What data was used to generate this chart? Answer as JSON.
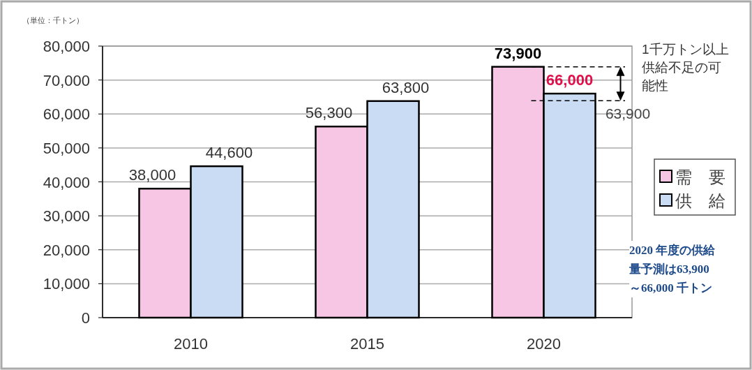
{
  "chart_data": {
    "type": "bar",
    "categories": [
      "2010",
      "2015",
      "2020"
    ],
    "series": [
      {
        "name": "需　要",
        "color": "#f6c6e4",
        "values": [
          38000,
          56300,
          73900
        ]
      },
      {
        "name": "供　給",
        "color": "#c9dcf3",
        "values": [
          44600,
          63800,
          66000
        ]
      }
    ],
    "ylim": [
      0,
      80000
    ],
    "yticks": [
      {
        "value": 0,
        "label": "0"
      },
      {
        "value": 10000,
        "label": "10,000"
      },
      {
        "value": 20000,
        "label": "20,000"
      },
      {
        "value": 30000,
        "label": "30,000"
      },
      {
        "value": 40000,
        "label": "40,000"
      },
      {
        "value": 50000,
        "label": "50,000"
      },
      {
        "value": 60000,
        "label": "60,000"
      },
      {
        "value": 70000,
        "label": "70,000"
      },
      {
        "value": 80000,
        "label": "80,000"
      }
    ],
    "grid": "y",
    "legend": "right",
    "value_labels": [
      [
        "38,000",
        "56,300",
        "73,900"
      ],
      [
        "44,600",
        "63,800",
        "66,000"
      ]
    ],
    "ref_lines": [
      {
        "axis": "y",
        "value": 73900,
        "line_style": "dashed"
      },
      {
        "axis": "y",
        "value": 63900,
        "label": "63,900",
        "line_style": "dashed"
      }
    ],
    "annotations": [
      "（単位：千トン）",
      "1千万トン以上供給不足の可能性",
      "2020 年度の供給量予測は63,900～66,000 千トン"
    ]
  }
}
